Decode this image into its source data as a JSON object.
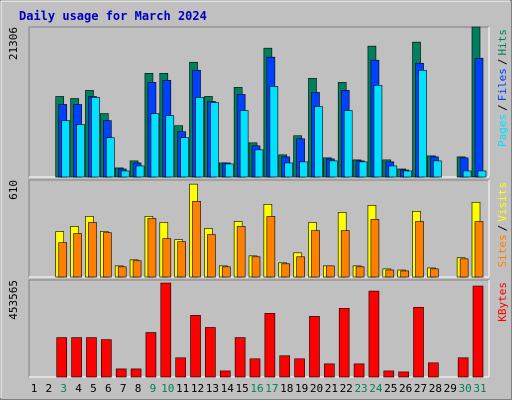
{
  "chart_data": [
    {
      "type": "bar",
      "title": "Daily usage for March 2024",
      "ylim": [
        0,
        21306
      ],
      "legend_separator": "/",
      "series": [
        {
          "name": "Hits",
          "color": "#00805c",
          "values": [
            0,
            0,
            11440,
            11150,
            12300,
            9010,
            1290,
            2290,
            14730,
            14730,
            7290,
            16300,
            11440,
            2000,
            12730,
            4860,
            18300,
            3150,
            5860,
            14010,
            2720,
            13440,
            2430,
            18590,
            2430,
            1140,
            19160,
            3000,
            0,
            2860,
            21306
          ]
        },
        {
          "name": "Files",
          "color": "#0040ff",
          "values": [
            0,
            0,
            10300,
            10300,
            11440,
            8010,
            1140,
            2000,
            13440,
            13730,
            6440,
            15160,
            10730,
            2000,
            11730,
            4430,
            17020,
            2860,
            5430,
            12010,
            2570,
            12300,
            2290,
            16590,
            2150,
            1000,
            16160,
            2860,
            0,
            2720,
            16870
          ]
        },
        {
          "name": "Pages",
          "color": "#00e0ff",
          "values": [
            0,
            0,
            8010,
            7440,
            11300,
            5580,
            860,
            1570,
            9010,
            8720,
            5580,
            11300,
            10580,
            1860,
            9440,
            3860,
            12870,
            2000,
            2150,
            10010,
            2290,
            9440,
            2150,
            13010,
            1570,
            860,
            15160,
            2290,
            0,
            860,
            860
          ]
        }
      ]
    },
    {
      "type": "bar",
      "ylim": [
        0,
        610
      ],
      "legend_separator": "/",
      "series": [
        {
          "name": "Visits",
          "color": "#ffff00",
          "values": [
            0,
            0,
            286,
            318,
            381,
            286,
            70,
            108,
            381,
            343,
            235,
            584,
            305,
            70,
            349,
            133,
            457,
            89,
            152,
            343,
            70,
            406,
            70,
            451,
            51,
            44,
            413,
            57,
            0,
            121,
            470
          ]
        },
        {
          "name": "Sites",
          "color": "#ff8000",
          "values": [
            0,
            0,
            216,
            273,
            343,
            279,
            64,
            102,
            368,
            241,
            222,
            476,
            267,
            64,
            318,
            127,
            381,
            83,
            127,
            292,
            70,
            292,
            64,
            362,
            44,
            38,
            349,
            51,
            0,
            114,
            349
          ]
        }
      ]
    },
    {
      "type": "bar",
      "ylim": [
        0,
        453565
      ],
      "categories": [
        "1",
        "2",
        "3",
        "4",
        "5",
        "6",
        "7",
        "8",
        "9",
        "10",
        "11",
        "12",
        "13",
        "14",
        "15",
        "16",
        "17",
        "18",
        "19",
        "20",
        "21",
        "22",
        "23",
        "24",
        "25",
        "26",
        "27",
        "28",
        "29",
        "30",
        "31"
      ],
      "category_colors": [
        "#000000",
        "#000000",
        "#00805c",
        "#000000",
        "#000000",
        "#000000",
        "#000000",
        "#000000",
        "#00805c",
        "#00805c",
        "#000000",
        "#000000",
        "#000000",
        "#000000",
        "#000000",
        "#00805c",
        "#00805c",
        "#000000",
        "#000000",
        "#000000",
        "#000000",
        "#000000",
        "#00805c",
        "#00805c",
        "#000000",
        "#000000",
        "#000000",
        "#000000",
        "#000000",
        "#00805c",
        "#00805c"
      ],
      "series": [
        {
          "name": "KBytes",
          "color": "#ff0000",
          "values": [
            0,
            0,
            184270,
            184270,
            184270,
            174830,
            37800,
            37800,
            207900,
            439400,
            89780,
            288230,
            231530,
            28350,
            184270,
            85050,
            297680,
            99230,
            85050,
            283500,
            61430,
            321300,
            61430,
            401630,
            28350,
            23630,
            326030,
            66150,
            0,
            89780,
            425250
          ]
        }
      ]
    }
  ]
}
